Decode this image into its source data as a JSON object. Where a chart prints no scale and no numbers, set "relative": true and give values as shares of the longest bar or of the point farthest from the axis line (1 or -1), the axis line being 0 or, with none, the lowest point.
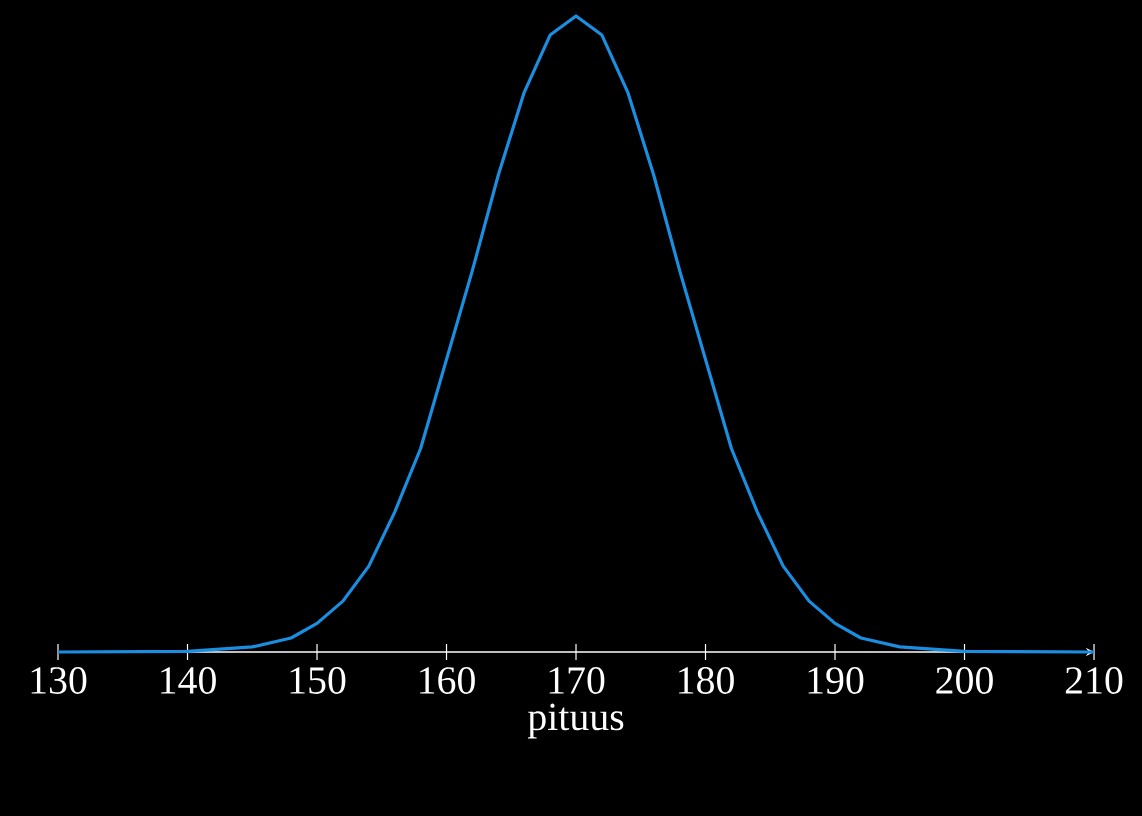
{
  "chart_data": {
    "type": "line",
    "relative": true,
    "xlabel": "pituus",
    "xlim": [
      130,
      210
    ],
    "xticks": [
      130,
      140,
      150,
      160,
      170,
      180,
      190,
      200,
      210
    ],
    "series": [
      {
        "color": "#1a8ee0",
        "x": [
          130,
          140,
          145,
          148,
          150,
          152,
          154,
          156,
          158,
          160,
          162,
          164,
          166,
          168,
          170,
          172,
          174,
          176,
          178,
          180,
          182,
          184,
          186,
          188,
          190,
          192,
          195,
          200,
          210
        ],
        "values": [
          0,
          0.001,
          0.008,
          0.022,
          0.045,
          0.08,
          0.135,
          0.22,
          0.32,
          0.46,
          0.6,
          0.75,
          0.88,
          0.97,
          1,
          0.97,
          0.88,
          0.75,
          0.6,
          0.46,
          0.32,
          0.22,
          0.135,
          0.08,
          0.045,
          0.022,
          0.008,
          0.001,
          0
        ]
      }
    ],
    "grid": false,
    "marker": "none",
    "line_style": "solid"
  }
}
